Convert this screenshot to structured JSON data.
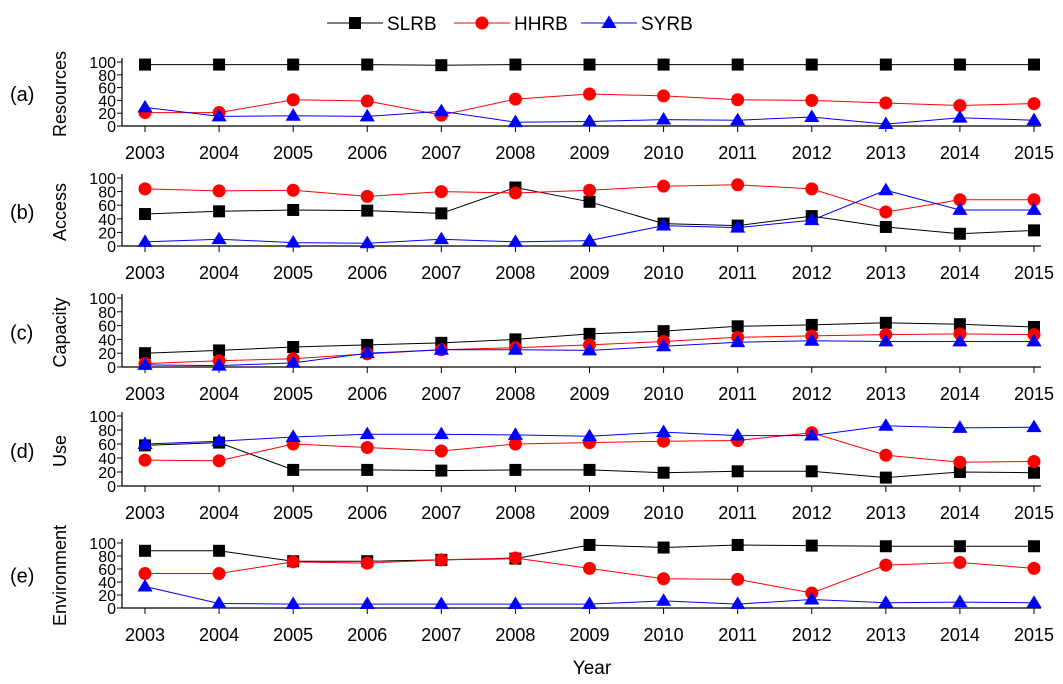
{
  "legend": [
    {
      "name": "SLRB",
      "color": "#000000",
      "marker": "square"
    },
    {
      "name": "HHRB",
      "color": "#ff0000",
      "marker": "circle"
    },
    {
      "name": "SYRB",
      "color": "#0000ff",
      "marker": "triangle"
    }
  ],
  "xlabel": "Year",
  "chart_data": [
    {
      "type": "line",
      "panel": "(a)",
      "ylabel": "Resources",
      "ylim": [
        0,
        100
      ],
      "yticks": [
        0,
        20,
        40,
        60,
        80,
        100
      ],
      "x": [
        "2003",
        "2004",
        "2005",
        "2006",
        "2007",
        "2008",
        "2009",
        "2010",
        "2011",
        "2012",
        "2013",
        "2014",
        "2015"
      ],
      "series": [
        {
          "name": "SLRB",
          "color": "#000000",
          "marker": "square",
          "values": [
            96,
            96,
            96,
            96,
            95,
            96,
            96,
            96,
            96,
            96,
            96,
            96,
            96
          ]
        },
        {
          "name": "HHRB",
          "color": "#ff0000",
          "marker": "circle",
          "values": [
            21,
            21,
            41,
            39,
            17,
            42,
            50,
            47,
            41,
            40,
            36,
            32,
            35
          ]
        },
        {
          "name": "SYRB",
          "color": "#0000ff",
          "marker": "triangle",
          "values": [
            29,
            15,
            16,
            15,
            23,
            6,
            7,
            10,
            9,
            14,
            3,
            13,
            9
          ]
        }
      ]
    },
    {
      "type": "line",
      "panel": "(b)",
      "ylabel": "Access",
      "ylim": [
        0,
        100
      ],
      "yticks": [
        0,
        20,
        40,
        60,
        80,
        100
      ],
      "x": [
        "2003",
        "2004",
        "2005",
        "2006",
        "2007",
        "2008",
        "2009",
        "2010",
        "2011",
        "2012",
        "2013",
        "2014",
        "2015"
      ],
      "series": [
        {
          "name": "SLRB",
          "color": "#000000",
          "marker": "square",
          "values": [
            47,
            51,
            53,
            52,
            48,
            86,
            65,
            33,
            30,
            44,
            28,
            18,
            23
          ]
        },
        {
          "name": "HHRB",
          "color": "#ff0000",
          "marker": "circle",
          "values": [
            84,
            81,
            82,
            73,
            80,
            78,
            82,
            88,
            90,
            84,
            50,
            68,
            68
          ]
        },
        {
          "name": "SYRB",
          "color": "#0000ff",
          "marker": "triangle",
          "values": [
            6,
            10,
            5,
            4,
            10,
            6,
            8,
            30,
            27,
            38,
            82,
            53,
            53
          ]
        }
      ]
    },
    {
      "type": "line",
      "panel": "(c)",
      "ylabel": "Capacity",
      "ylim": [
        0,
        100
      ],
      "yticks": [
        0,
        20,
        40,
        60,
        80,
        100
      ],
      "x": [
        "2003",
        "2004",
        "2005",
        "2006",
        "2007",
        "2008",
        "2009",
        "2010",
        "2011",
        "2012",
        "2013",
        "2014",
        "2015"
      ],
      "series": [
        {
          "name": "SLRB",
          "color": "#000000",
          "marker": "square",
          "values": [
            20,
            24,
            29,
            32,
            35,
            40,
            48,
            52,
            59,
            61,
            64,
            62,
            58
          ]
        },
        {
          "name": "HHRB",
          "color": "#ff0000",
          "marker": "circle",
          "values": [
            5,
            9,
            12,
            19,
            25,
            28,
            32,
            37,
            43,
            45,
            47,
            48,
            47
          ]
        },
        {
          "name": "SYRB",
          "color": "#0000ff",
          "marker": "triangle",
          "values": [
            3,
            2,
            6,
            20,
            25,
            25,
            24,
            30,
            36,
            38,
            37,
            37,
            37
          ]
        }
      ]
    },
    {
      "type": "line",
      "panel": "(d)",
      "ylabel": "Use",
      "ylim": [
        0,
        100
      ],
      "yticks": [
        0,
        20,
        40,
        60,
        80,
        100
      ],
      "x": [
        "2003",
        "2004",
        "2005",
        "2006",
        "2007",
        "2008",
        "2009",
        "2010",
        "2011",
        "2012",
        "2013",
        "2014",
        "2015"
      ],
      "series": [
        {
          "name": "SLRB",
          "color": "#000000",
          "marker": "square",
          "values": [
            58,
            62,
            23,
            23,
            22,
            23,
            23,
            19,
            21,
            21,
            12,
            20,
            19
          ]
        },
        {
          "name": "HHRB",
          "color": "#ff0000",
          "marker": "circle",
          "values": [
            37,
            36,
            60,
            55,
            50,
            60,
            62,
            64,
            65,
            76,
            44,
            34,
            35
          ]
        },
        {
          "name": "SYRB",
          "color": "#0000ff",
          "marker": "triangle",
          "values": [
            60,
            64,
            70,
            74,
            74,
            73,
            71,
            77,
            72,
            72,
            86,
            83,
            84
          ]
        }
      ]
    },
    {
      "type": "line",
      "panel": "(e)",
      "ylabel": "Environment",
      "ylim": [
        0,
        100
      ],
      "yticks": [
        0,
        20,
        40,
        60,
        80,
        100
      ],
      "x": [
        "2003",
        "2004",
        "2005",
        "2006",
        "2007",
        "2008",
        "2009",
        "2010",
        "2011",
        "2012",
        "2013",
        "2014",
        "2015"
      ],
      "series": [
        {
          "name": "SLRB",
          "color": "#000000",
          "marker": "square",
          "values": [
            88,
            88,
            72,
            72,
            74,
            76,
            97,
            93,
            97,
            96,
            95,
            95,
            95
          ]
        },
        {
          "name": "HHRB",
          "color": "#ff0000",
          "marker": "circle",
          "values": [
            53,
            53,
            71,
            69,
            74,
            77,
            61,
            45,
            44,
            23,
            66,
            70,
            61
          ]
        },
        {
          "name": "SYRB",
          "color": "#0000ff",
          "marker": "triangle",
          "values": [
            33,
            7,
            6,
            6,
            6,
            6,
            6,
            11,
            6,
            13,
            8,
            9,
            8
          ]
        }
      ]
    }
  ]
}
